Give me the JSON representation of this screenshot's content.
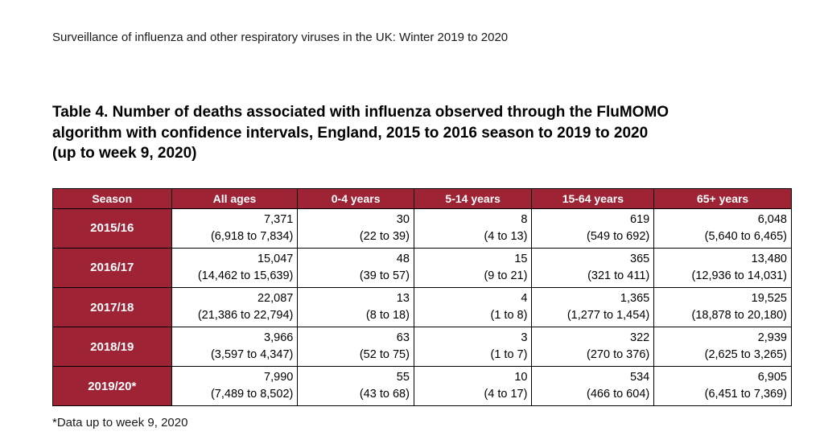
{
  "page": {
    "header": "Surveillance of influenza and other respiratory viruses in the UK: Winter 2019 to 2020",
    "title": "Table 4. Number of deaths associated with influenza observed through the FluMOMO\nalgorithm with confidence intervals, England, 2015 to 2016 season to 2019 to 2020\n(up to week 9, 2020)",
    "footnote": "*Data up to week 9, 2020"
  },
  "table": {
    "header_bg_color": "#9e2335",
    "columns": [
      "Season",
      "All ages",
      "0-4 years",
      "5-14 years",
      "15-64 years",
      "65+ years"
    ],
    "rows": [
      {
        "season": "2015/16",
        "cells": [
          {
            "value": "7,371",
            "ci": "(6,918 to 7,834)"
          },
          {
            "value": "30",
            "ci": "(22 to 39)"
          },
          {
            "value": "8",
            "ci": "(4 to 13)"
          },
          {
            "value": "619",
            "ci": "(549 to 692)"
          },
          {
            "value": "6,048",
            "ci": "(5,640 to 6,465)"
          }
        ]
      },
      {
        "season": "2016/17",
        "cells": [
          {
            "value": "15,047",
            "ci": "(14,462 to 15,639)"
          },
          {
            "value": "48",
            "ci": "(39 to 57)"
          },
          {
            "value": "15",
            "ci": "(9 to 21)"
          },
          {
            "value": "365",
            "ci": "(321 to 411)"
          },
          {
            "value": "13,480",
            "ci": "(12,936 to 14,031)"
          }
        ]
      },
      {
        "season": "2017/18",
        "cells": [
          {
            "value": "22,087",
            "ci": "(21,386 to 22,794)"
          },
          {
            "value": "13",
            "ci": "(8 to 18)"
          },
          {
            "value": "4",
            "ci": "(1 to 8)"
          },
          {
            "value": "1,365",
            "ci": "(1,277 to 1,454)"
          },
          {
            "value": "19,525",
            "ci": "(18,878 to 20,180)"
          }
        ]
      },
      {
        "season": "2018/19",
        "cells": [
          {
            "value": "3,966",
            "ci": "(3,597 to 4,347)"
          },
          {
            "value": "63",
            "ci": "(52 to 75)"
          },
          {
            "value": "3",
            "ci": "(1 to 7)"
          },
          {
            "value": "322",
            "ci": "(270 to 376)"
          },
          {
            "value": "2,939",
            "ci": "(2,625 to 3,265)"
          }
        ]
      },
      {
        "season": "2019/20*",
        "cells": [
          {
            "value": "7,990",
            "ci": "(7,489 to 8,502)"
          },
          {
            "value": "55",
            "ci": "(43 to 68)"
          },
          {
            "value": "10",
            "ci": "(4 to 17)"
          },
          {
            "value": "534",
            "ci": "(466 to 604)"
          },
          {
            "value": "6,905",
            "ci": "(6,451 to 7,369)"
          }
        ]
      }
    ]
  }
}
